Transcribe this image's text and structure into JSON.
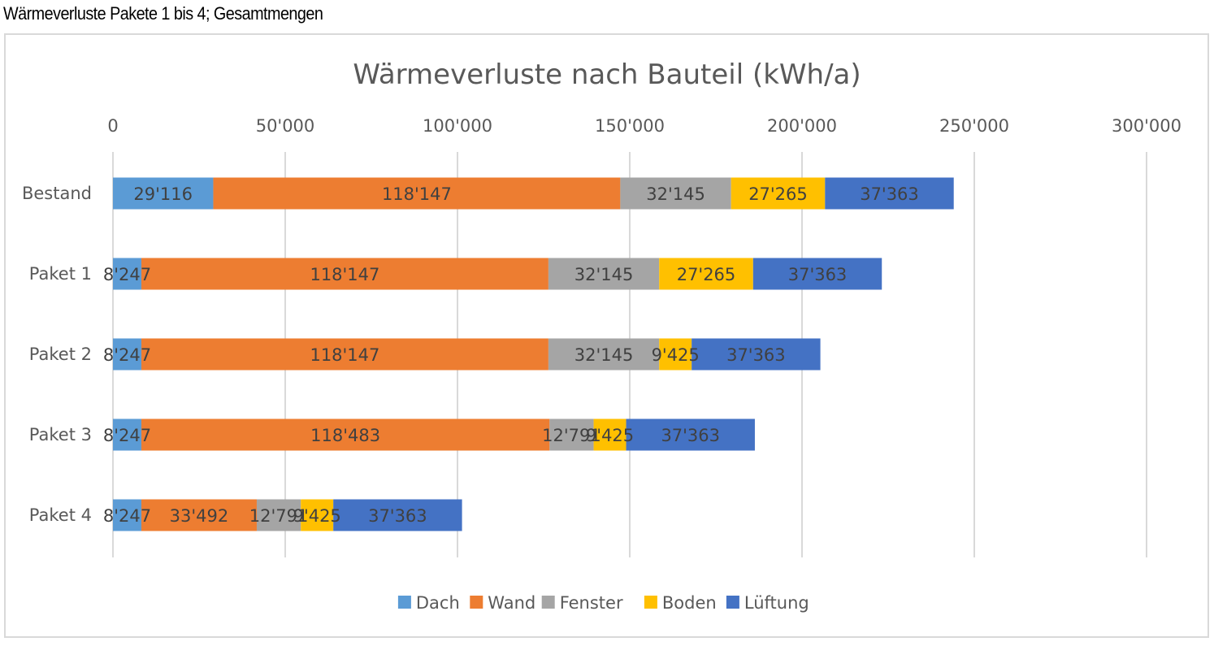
{
  "caption": "Wärmeverluste Pakete 1 bis 4; Gesamtmengen",
  "chart_data": {
    "type": "bar",
    "orientation": "horizontal",
    "stacked": true,
    "title": "Wärmeverluste nach Bauteil (kWh/a)",
    "xlim": [
      0,
      300000
    ],
    "x_ticks": [
      0,
      50000,
      100000,
      150000,
      200000,
      250000,
      300000
    ],
    "x_tick_labels": [
      "0",
      "50'000",
      "100'000",
      "150'000",
      "200'000",
      "250'000",
      "300'000"
    ],
    "x_axis_position": "top",
    "grid": true,
    "legend_position": "bottom",
    "categories": [
      "Bestand",
      "Paket 1",
      "Paket 2",
      "Paket 3",
      "Paket 4"
    ],
    "series": [
      {
        "name": "Dach",
        "color": "#5b9bd5",
        "values": [
          29116,
          8247,
          8247,
          8247,
          8247
        ],
        "labels": [
          "29'116",
          "8'247",
          "8'247",
          "8'247",
          "8'247"
        ]
      },
      {
        "name": "Wand",
        "color": "#ed7d31",
        "values": [
          118147,
          118147,
          118147,
          118483,
          33492
        ],
        "labels": [
          "118'147",
          "118'147",
          "118'147",
          "118'483",
          "33'492"
        ]
      },
      {
        "name": "Fenster",
        "color": "#a5a5a5",
        "values": [
          32145,
          32145,
          32145,
          12791,
          12791
        ],
        "labels": [
          "32'145",
          "32'145",
          "32'145",
          "12'791",
          "12'791"
        ]
      },
      {
        "name": "Boden",
        "color": "#ffc000",
        "values": [
          27265,
          27265,
          9425,
          9425,
          9425
        ],
        "labels": [
          "27'265",
          "27'265",
          "9'425",
          "9'425",
          "9'425"
        ]
      },
      {
        "name": "Lüftung",
        "color": "#4472c4",
        "values": [
          37363,
          37363,
          37363,
          37363,
          37363
        ],
        "labels": [
          "37'363",
          "37'363",
          "37'363",
          "37'363",
          "37'363"
        ]
      }
    ]
  }
}
